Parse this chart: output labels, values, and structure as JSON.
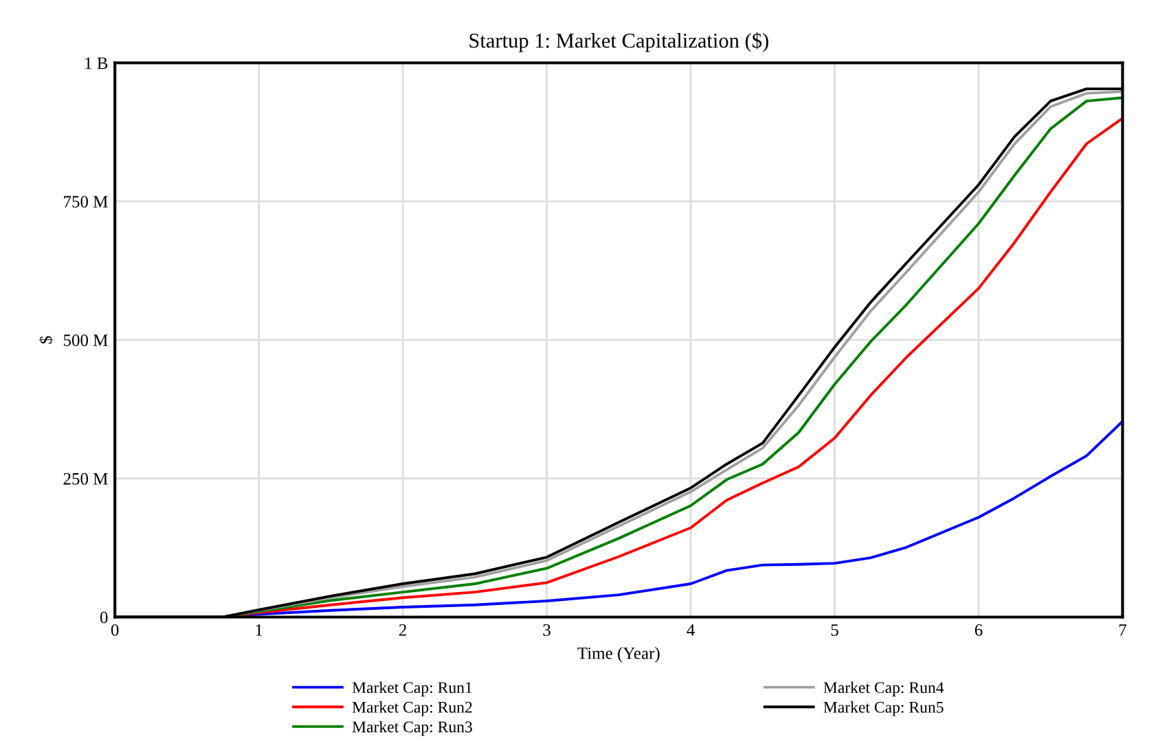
{
  "chart_data": {
    "type": "line",
    "title": "Startup 1: Market Capitalization ($)",
    "xlabel": "Time (Year)",
    "ylabel": "$",
    "x": [
      0,
      0.75,
      1,
      1.5,
      2,
      2.5,
      3,
      3.5,
      4,
      4.25,
      4.5,
      4.75,
      5,
      5.25,
      5.5,
      6,
      6.25,
      6.5,
      6.75,
      7
    ],
    "series": [
      {
        "name": "Market Cap: Run1",
        "color": "#0000ff",
        "values": [
          0,
          0,
          5000000,
          12000000,
          18000000,
          22000000,
          29000000,
          40000000,
          60000000,
          84000000,
          94000000,
          95000000,
          97000000,
          107000000,
          126000000,
          180000000,
          215000000,
          254000000,
          291000000,
          353000000
        ]
      },
      {
        "name": "Market Cap: Run2",
        "color": "#ff0000",
        "values": [
          0,
          0,
          8000000,
          22000000,
          35000000,
          45000000,
          62000000,
          109000000,
          161000000,
          211000000,
          242000000,
          271000000,
          323000000,
          400000000,
          469000000,
          593000000,
          676000000,
          767000000,
          854000000,
          900000000
        ]
      },
      {
        "name": "Market Cap: Run3",
        "color": "#008000",
        "values": [
          0,
          0,
          10000000,
          30000000,
          45000000,
          60000000,
          88000000,
          142000000,
          201000000,
          248000000,
          276000000,
          333000000,
          420000000,
          497000000,
          564000000,
          710000000,
          797000000,
          881000000,
          931000000,
          937000000
        ]
      },
      {
        "name": "Market Cap: Run4",
        "color": "#a0a0a0",
        "values": [
          0,
          0,
          12000000,
          35000000,
          55000000,
          72000000,
          102000000,
          164000000,
          226000000,
          266000000,
          305000000,
          382000000,
          469000000,
          552000000,
          623000000,
          767000000,
          854000000,
          921000000,
          945000000,
          948000000
        ]
      },
      {
        "name": "Market Cap: Run5",
        "color": "#000000",
        "values": [
          0,
          0,
          13000000,
          38000000,
          60000000,
          78000000,
          108000000,
          171000000,
          233000000,
          276000000,
          314000000,
          400000000,
          487000000,
          568000000,
          639000000,
          780000000,
          867000000,
          931000000,
          953000000,
          953000000
        ]
      }
    ],
    "xlim": [
      0,
      7
    ],
    "ylim": [
      0,
      1000000000
    ],
    "xticks": [
      0,
      1,
      2,
      3,
      4,
      5,
      6,
      7
    ],
    "yticks": [
      {
        "value": 0,
        "label": "0"
      },
      {
        "value": 250000000,
        "label": "250 M"
      },
      {
        "value": 500000000,
        "label": "500 M"
      },
      {
        "value": 750000000,
        "label": "750 M"
      },
      {
        "value": 1000000000,
        "label": "1 B"
      }
    ],
    "grid": true,
    "legend": "bottom",
    "marker": "none",
    "line_style": "solid"
  }
}
